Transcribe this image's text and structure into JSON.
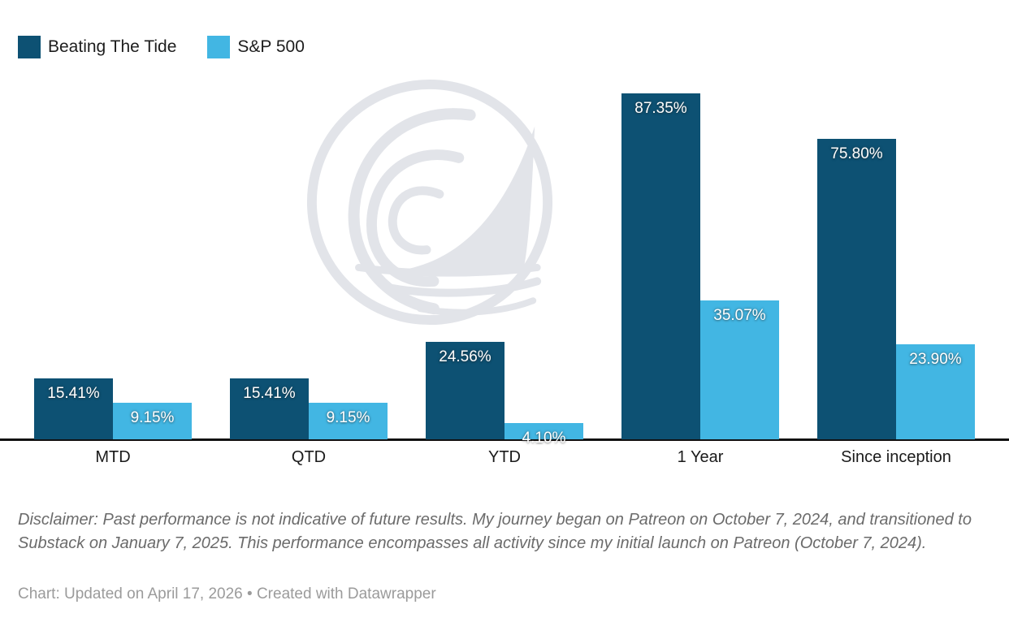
{
  "legend": {
    "items": [
      {
        "label": "Beating The Tide",
        "color": "#0d5173"
      },
      {
        "label": "S&P 500",
        "color": "#42b6e3"
      }
    ]
  },
  "chart_data": {
    "type": "bar",
    "categories": [
      "MTD",
      "QTD",
      "YTD",
      "1 Year",
      "Since inception"
    ],
    "series": [
      {
        "name": "Beating The Tide",
        "color": "#0d5173",
        "values": [
          15.41,
          15.41,
          24.56,
          87.35,
          75.8
        ]
      },
      {
        "name": "S&P 500",
        "color": "#42b6e3",
        "values": [
          9.15,
          9.15,
          4.1,
          35.07,
          23.9
        ]
      }
    ],
    "value_labels": [
      [
        "15.41%",
        "15.41%",
        "24.56%",
        "87.35%",
        "75.80%"
      ],
      [
        "9.15%",
        "9.15%",
        "4.10%",
        "35.07%",
        "23.90%"
      ]
    ],
    "ylim": [
      0,
      90
    ],
    "value_format": "percent",
    "grid": false,
    "legend_position": "top-left",
    "title": "",
    "xlabel": "",
    "ylabel": ""
  },
  "watermark": {
    "name": "beating-the-tide-wave-sail-logo",
    "color": "#e2e4e9"
  },
  "disclaimer": "Disclaimer: Past performance is not indicative of future results. My journey began on Patreon on October 7, 2024, and transitioned to Substack on January 7, 2025. This performance encompasses all activity since my initial launch on Patreon (October 7, 2024).",
  "footer": "Chart: Updated on April 17, 2026 • Created with Datawrapper"
}
